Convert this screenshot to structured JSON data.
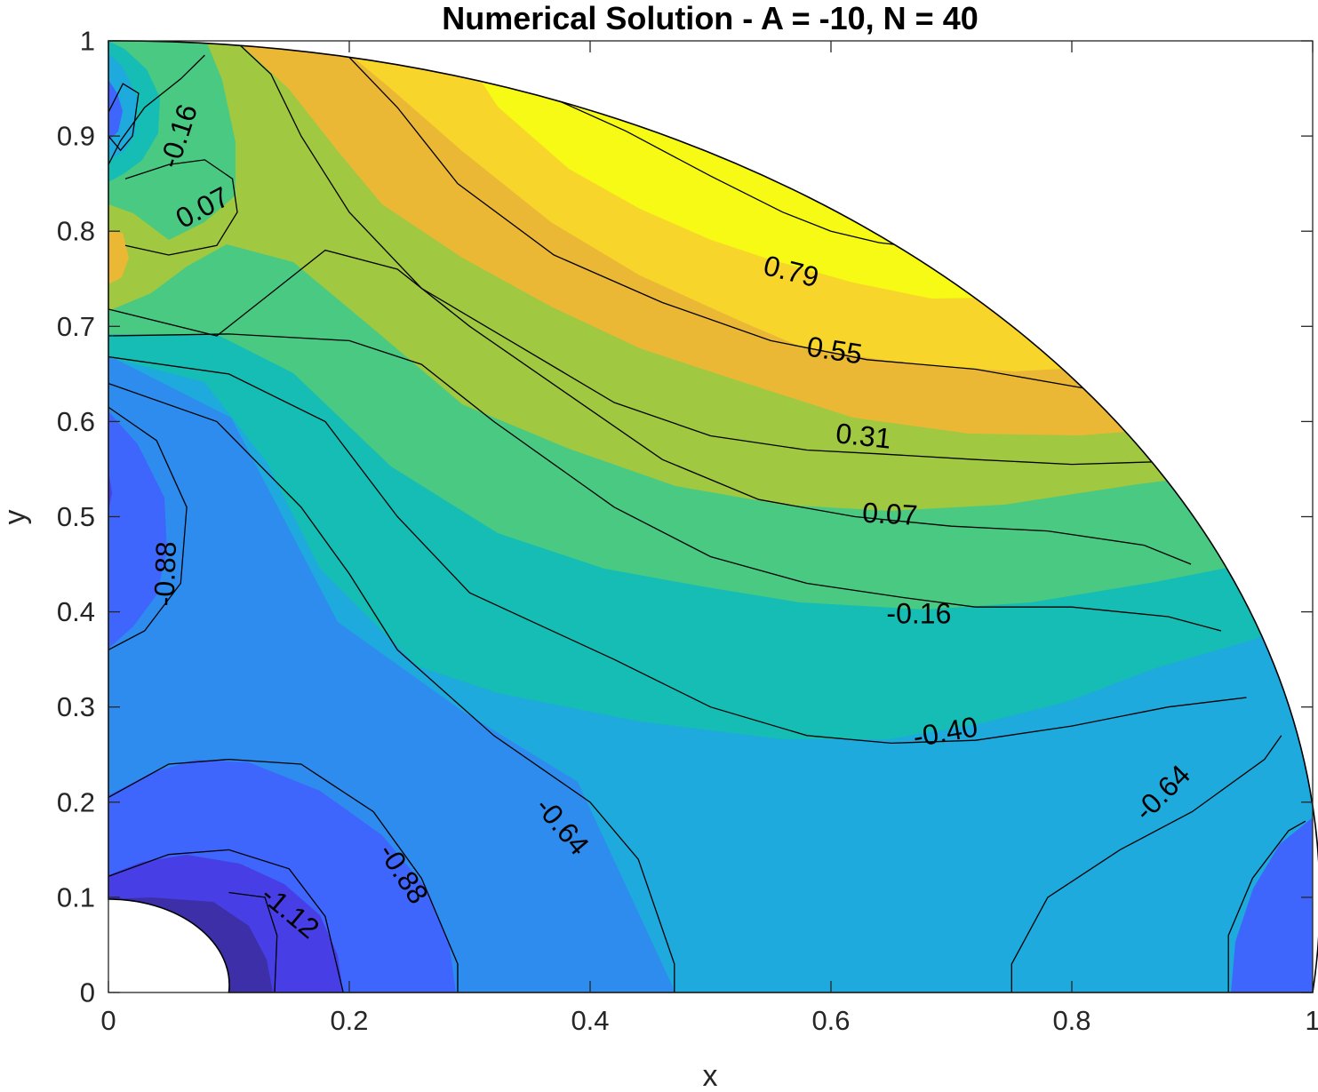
{
  "chart_data": {
    "type": "contourf",
    "title": "Numerical Solution - A = -10, N = 40",
    "xlabel": "x",
    "ylabel": "y",
    "xlim": [
      0,
      1
    ],
    "ylim": [
      0,
      1
    ],
    "xticks": [
      "0",
      "0.2",
      "0.4",
      "0.6",
      "0.8",
      "1"
    ],
    "yticks": [
      "0",
      "0.1",
      "0.2",
      "0.3",
      "0.4",
      "0.5",
      "0.6",
      "0.7",
      "0.8",
      "0.9",
      "1"
    ],
    "domain": "quarter annulus, inner radius 0.1, outer radius 1",
    "grid": false,
    "colormap": "parula",
    "levels": [
      -1.36,
      -1.12,
      -0.88,
      -0.64,
      -0.4,
      -0.16,
      0.07,
      0.31,
      0.55,
      0.79
    ],
    "band_colors": [
      "#3c2fa8",
      "#473ee6",
      "#3f66fc",
      "#2e8cee",
      "#1eaadc",
      "#15bdb4",
      "#49c982",
      "#a0c840",
      "#ebb836",
      "#f8d52b",
      "#f6fa14"
    ],
    "contours": [
      {
        "level": "0.79",
        "points": [
          [
            0.288,
            0.972
          ],
          [
            0.36,
            0.945
          ],
          [
            0.43,
            0.905
          ],
          [
            0.5,
            0.858
          ],
          [
            0.56,
            0.82
          ],
          [
            0.6,
            0.8
          ],
          [
            0.64,
            0.788
          ],
          [
            0.72,
            0.776
          ],
          [
            0.86,
            0.738
          ]
        ]
      },
      {
        "level": "0.55",
        "points": [
          [
            0.196,
            0.988
          ],
          [
            0.24,
            0.93
          ],
          [
            0.29,
            0.85
          ],
          [
            0.37,
            0.775
          ],
          [
            0.46,
            0.725
          ],
          [
            0.55,
            0.685
          ],
          [
            0.63,
            0.665
          ],
          [
            0.72,
            0.655
          ],
          [
            0.81,
            0.635
          ],
          [
            0.936,
            0.655
          ]
        ]
      },
      {
        "level": "0.31",
        "points": [
          [
            0.108,
            0.997
          ],
          [
            0.135,
            0.965
          ],
          [
            0.16,
            0.9
          ],
          [
            0.2,
            0.82
          ],
          [
            0.26,
            0.74
          ],
          [
            0.34,
            0.68
          ],
          [
            0.42,
            0.62
          ],
          [
            0.5,
            0.585
          ],
          [
            0.58,
            0.57
          ],
          [
            0.64,
            0.566
          ],
          [
            0.72,
            0.56
          ],
          [
            0.8,
            0.555
          ],
          [
            0.88,
            0.558
          ],
          [
            0.964,
            0.58
          ]
        ]
      },
      {
        "level": "0.07",
        "points": [
          [
            0,
            0.718
          ],
          [
            0.09,
            0.69
          ],
          [
            0.14,
            0.74
          ],
          [
            0.18,
            0.78
          ],
          [
            0.24,
            0.76
          ],
          [
            0.3,
            0.7
          ],
          [
            0.38,
            0.63
          ],
          [
            0.46,
            0.56
          ],
          [
            0.54,
            0.518
          ],
          [
            0.62,
            0.5
          ],
          [
            0.7,
            0.49
          ],
          [
            0.78,
            0.485
          ],
          [
            0.86,
            0.47
          ],
          [
            0.899,
            0.45
          ]
        ]
      },
      {
        "level": "0.07",
        "points": [
          [
            0.014,
            0.855
          ],
          [
            0.05,
            0.87
          ],
          [
            0.08,
            0.875
          ],
          [
            0.103,
            0.855
          ],
          [
            0.107,
            0.82
          ],
          [
            0.09,
            0.785
          ],
          [
            0.05,
            0.775
          ],
          [
            0.014,
            0.785
          ]
        ]
      },
      {
        "level": "-0.16",
        "points": [
          [
            0,
            0.69
          ],
          [
            0.1,
            0.692
          ],
          [
            0.2,
            0.685
          ],
          [
            0.26,
            0.66
          ],
          [
            0.32,
            0.6
          ],
          [
            0.42,
            0.51
          ],
          [
            0.5,
            0.458
          ],
          [
            0.58,
            0.43
          ],
          [
            0.66,
            0.415
          ],
          [
            0.72,
            0.405
          ],
          [
            0.8,
            0.405
          ],
          [
            0.88,
            0.395
          ],
          [
            0.924,
            0.38
          ]
        ]
      },
      {
        "level": "-0.16",
        "points": [
          [
            0,
            0.87
          ],
          [
            0.01,
            0.895
          ],
          [
            0.03,
            0.93
          ],
          [
            0.06,
            0.96
          ],
          [
            0.08,
            0.985
          ]
        ]
      },
      {
        "level": "-0.40",
        "points": [
          [
            0,
            0.668
          ],
          [
            0.1,
            0.65
          ],
          [
            0.18,
            0.6
          ],
          [
            0.24,
            0.5
          ],
          [
            0.3,
            0.42
          ],
          [
            0.42,
            0.35
          ],
          [
            0.5,
            0.3
          ],
          [
            0.58,
            0.27
          ],
          [
            0.65,
            0.262
          ],
          [
            0.72,
            0.265
          ],
          [
            0.8,
            0.28
          ],
          [
            0.88,
            0.3
          ],
          [
            0.945,
            0.31
          ]
        ]
      },
      {
        "level": "-0.64",
        "points": [
          [
            0,
            0.64
          ],
          [
            0.09,
            0.6
          ],
          [
            0.16,
            0.51
          ],
          [
            0.2,
            0.44
          ],
          [
            0.24,
            0.36
          ],
          [
            0.32,
            0.27
          ],
          [
            0.4,
            0.2
          ],
          [
            0.44,
            0.14
          ],
          [
            0.47,
            0.03
          ],
          [
            0.47,
            0
          ]
        ]
      },
      {
        "level": "-0.64",
        "points": [
          [
            0.75,
            0
          ],
          [
            0.75,
            0.03
          ],
          [
            0.78,
            0.1
          ],
          [
            0.84,
            0.15
          ],
          [
            0.9,
            0.19
          ],
          [
            0.96,
            0.245
          ],
          [
            0.974,
            0.27
          ]
        ]
      },
      {
        "level": "-0.88",
        "points": [
          [
            0,
            0.615
          ],
          [
            0.04,
            0.58
          ],
          [
            0.065,
            0.51
          ],
          [
            0.06,
            0.43
          ],
          [
            0.03,
            0.38
          ],
          [
            0,
            0.36
          ]
        ]
      },
      {
        "level": "-0.88",
        "points": [
          [
            0,
            0.205
          ],
          [
            0.05,
            0.24
          ],
          [
            0.1,
            0.245
          ],
          [
            0.16,
            0.24
          ],
          [
            0.22,
            0.19
          ],
          [
            0.26,
            0.12
          ],
          [
            0.29,
            0.03
          ],
          [
            0.29,
            0
          ]
        ]
      },
      {
        "level": "-0.88",
        "points": [
          [
            0.93,
            0
          ],
          [
            0.93,
            0.06
          ],
          [
            0.95,
            0.12
          ],
          [
            0.98,
            0.17
          ],
          [
            0.994,
            0.18
          ]
        ]
      },
      {
        "level": "-1.12",
        "points": [
          [
            0,
            0.122
          ],
          [
            0.05,
            0.145
          ],
          [
            0.1,
            0.15
          ],
          [
            0.15,
            0.13
          ],
          [
            0.18,
            0.08
          ],
          [
            0.195,
            0
          ]
        ]
      },
      {
        "level": "-1.36",
        "points": [
          [
            0.1,
            0.105
          ],
          [
            0.13,
            0.1
          ],
          [
            0.14,
            0.06
          ],
          [
            0.138,
            0
          ]
        ]
      },
      {
        "level": "-1.12",
        "points": [
          [
            0,
            0.925
          ],
          [
            0.012,
            0.955
          ],
          [
            0.025,
            0.945
          ],
          [
            0.02,
            0.9
          ],
          [
            0.01,
            0.885
          ],
          [
            0,
            0.9
          ]
        ]
      }
    ],
    "labels": [
      {
        "text": "-0.16",
        "x": 0.058,
        "y": 0.9,
        "angle": -72
      },
      {
        "text": "0.07",
        "x": 0.078,
        "y": 0.825,
        "angle": -28
      },
      {
        "text": "0.79",
        "x": 0.567,
        "y": 0.758,
        "angle": 14
      },
      {
        "text": "0.55",
        "x": 0.603,
        "y": 0.675,
        "angle": 9
      },
      {
        "text": "0.31",
        "x": 0.627,
        "y": 0.585,
        "angle": 6
      },
      {
        "text": "0.07",
        "x": 0.649,
        "y": 0.503,
        "angle": 3
      },
      {
        "text": "-0.16",
        "x": 0.673,
        "y": 0.398,
        "angle": 0
      },
      {
        "text": "-0.40",
        "x": 0.695,
        "y": 0.274,
        "angle": -10
      },
      {
        "text": "-0.64",
        "x": 0.377,
        "y": 0.175,
        "angle": 50
      },
      {
        "text": "-0.64",
        "x": 0.875,
        "y": 0.21,
        "angle": -45
      },
      {
        "text": "-0.88",
        "x": 0.047,
        "y": 0.44,
        "angle": -88
      },
      {
        "text": "-0.88",
        "x": 0.245,
        "y": 0.125,
        "angle": 57
      },
      {
        "text": "-1.12",
        "x": 0.151,
        "y": 0.085,
        "angle": 40
      }
    ]
  }
}
